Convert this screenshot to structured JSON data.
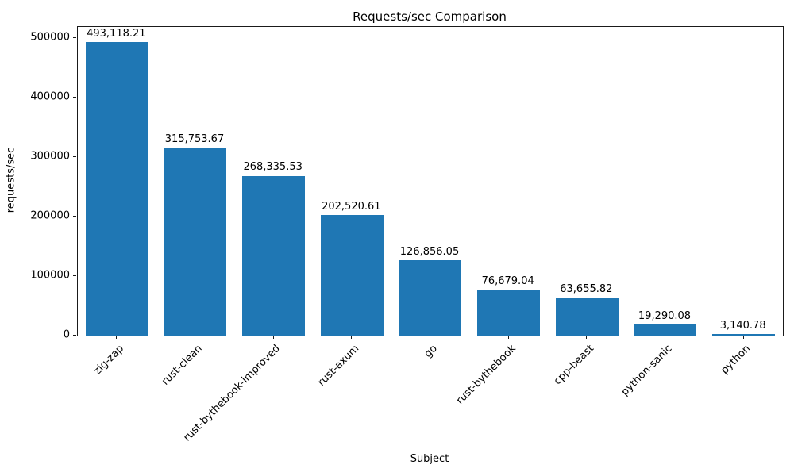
{
  "chart_data": {
    "type": "bar",
    "title": "Requests/sec Comparison",
    "xlabel": "Subject",
    "ylabel": "requests/sec",
    "categories": [
      "zig-zap",
      "rust-clean",
      "rust-bythebook-improved",
      "rust-axum",
      "go",
      "rust-bythebook",
      "cpp-beast",
      "python-sanic",
      "python"
    ],
    "values": [
      493118.21,
      315753.67,
      268335.53,
      202520.61,
      126856.05,
      76679.04,
      63655.82,
      19290.08,
      3140.78
    ],
    "value_labels": [
      "493,118.21",
      "315,753.67",
      "268,335.53",
      "202,520.61",
      "126,856.05",
      "76,679.04",
      "63,655.82",
      "19,290.08",
      "3,140.78"
    ],
    "yticks": [
      0,
      100000,
      200000,
      300000,
      400000,
      500000
    ],
    "ytick_labels": [
      "0",
      "100000",
      "200000",
      "300000",
      "400000",
      "500000"
    ],
    "ylim": [
      0,
      518000
    ],
    "bar_color": "#1f77b4",
    "grid": false,
    "legend": null,
    "x_tick_rotation_deg": 45
  }
}
